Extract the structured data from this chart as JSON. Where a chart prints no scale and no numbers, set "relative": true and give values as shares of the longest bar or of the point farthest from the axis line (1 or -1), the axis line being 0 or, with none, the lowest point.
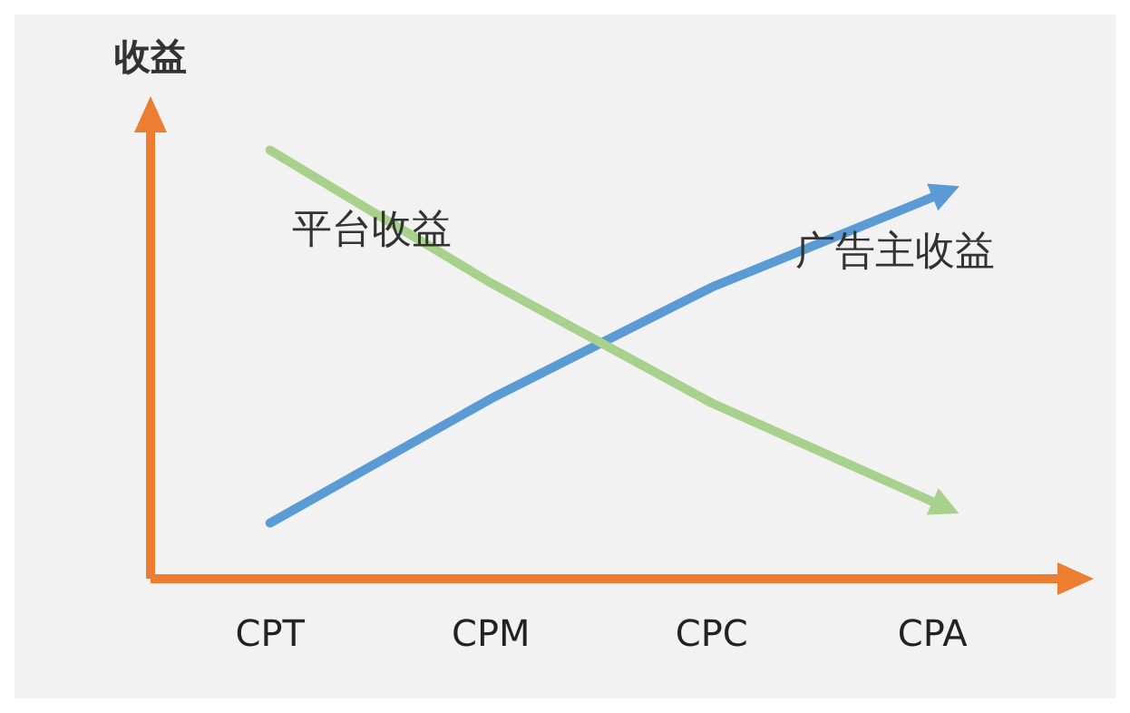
{
  "chart_data": {
    "type": "line",
    "ylabel": "收益",
    "categories": [
      "CPT",
      "CPM",
      "CPC",
      "CPA"
    ],
    "relative": true,
    "legend": false,
    "grid": false,
    "marker": "none",
    "line_style": "solid",
    "series": [
      {
        "name": "平台收益",
        "color": "#a9d18e",
        "values": [
          1,
          0.69,
          0.41,
          0.18
        ]
      },
      {
        "name": "广告主收益",
        "color": "#5b9bd5",
        "values": [
          0.13,
          0.42,
          0.68,
          0.89
        ]
      }
    ]
  }
}
